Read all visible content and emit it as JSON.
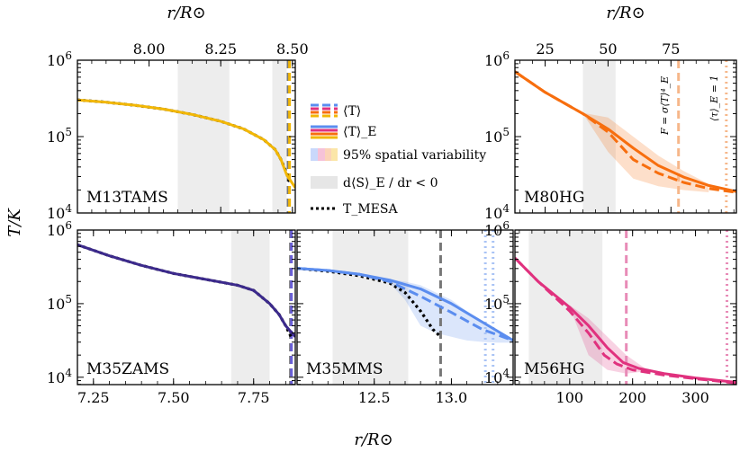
{
  "figure": {
    "ylabel": "T/K",
    "xlabel_bottom": "r/R⊙",
    "xlabel_top_left": "r/R⊙",
    "xlabel_top_right": "r/R⊙"
  },
  "legend": {
    "items": [
      {
        "key": "mean_T",
        "label": "⟨T⟩"
      },
      {
        "key": "mean_T_E",
        "label": "⟨T⟩_E"
      },
      {
        "key": "spread",
        "label": "95% spatial variability"
      },
      {
        "key": "dsdr",
        "label": "d⟨S⟩_E / dr < 0"
      },
      {
        "key": "mesa",
        "label": "T_MESA"
      }
    ]
  },
  "annotations": {
    "flux_label": "F = σ⟨T⟩⁴_E",
    "tau_label": "⟨τ⟩_E = 1"
  },
  "chart_data": [
    {
      "id": "M13TAMS",
      "type": "line",
      "label": "M13TAMS",
      "color": "#f2b705",
      "xlim": [
        7.75,
        8.51
      ],
      "ylim": [
        4.0,
        6.0
      ],
      "yscale": "log",
      "xticks": [
        8.0,
        8.25,
        8.5
      ],
      "xtick_labels": [
        "8.00",
        "8.25",
        "8.50"
      ],
      "xaxis": "top",
      "yticks": [
        4,
        5,
        6
      ],
      "ytick_labels": [
        "10⁴",
        "10⁵",
        "10⁶"
      ],
      "shaded": [
        [
          8.1,
          8.28
        ],
        [
          8.43,
          8.48
        ]
      ],
      "vlines": [
        {
          "x": 8.485,
          "style": "dashed",
          "color": "#777777"
        },
        {
          "x": 8.49,
          "style": "dashed",
          "color": "#f2b705"
        }
      ],
      "series": [
        {
          "name": "T_MESA",
          "style": "dotted",
          "color": "#000000",
          "x": [
            7.75,
            7.85,
            7.95,
            8.05,
            8.15,
            8.25,
            8.33,
            8.4,
            8.44,
            8.46,
            8.48,
            8.49
          ],
          "y": [
            5.48,
            5.45,
            5.41,
            5.36,
            5.29,
            5.2,
            5.1,
            4.96,
            4.83,
            4.7,
            4.52,
            4.4
          ]
        },
        {
          "name": "⟨T⟩_E",
          "style": "solid",
          "color": "#f2b705",
          "x": [
            7.75,
            7.85,
            7.95,
            8.05,
            8.15,
            8.25,
            8.33,
            8.4,
            8.44,
            8.46,
            8.48,
            8.51
          ],
          "y": [
            5.48,
            5.45,
            5.41,
            5.36,
            5.29,
            5.2,
            5.1,
            4.96,
            4.83,
            4.7,
            4.5,
            4.33
          ]
        }
      ]
    },
    {
      "id": "M80HG",
      "type": "line",
      "label": "M80HG",
      "color": "#f76e0e",
      "xlim": [
        13,
        101
      ],
      "ylim": [
        4.0,
        6.0
      ],
      "yscale": "log",
      "xticks": [
        25,
        50,
        75
      ],
      "xtick_labels": [
        "25",
        "50",
        "75"
      ],
      "xaxis": "top",
      "yticks": [
        4,
        5,
        6
      ],
      "ytick_labels": [
        "10⁴",
        "10⁵",
        "10⁶"
      ],
      "shaded": [
        [
          40,
          53
        ]
      ],
      "vlines": [
        {
          "x": 78,
          "style": "dashed",
          "color": "#f6b78a"
        },
        {
          "x": 97,
          "style": "dotted",
          "color": "#f6b78a"
        }
      ],
      "series": [
        {
          "name": "⟨T⟩",
          "style": "dashed",
          "color": "#f76e0e",
          "x": [
            13,
            25,
            40,
            50,
            60,
            70,
            80,
            90,
            101
          ],
          "y": [
            5.85,
            5.58,
            5.3,
            5.06,
            4.7,
            4.52,
            4.4,
            4.32,
            4.27
          ]
        },
        {
          "name": "⟨T⟩_E",
          "style": "solid",
          "color": "#f76e0e",
          "x": [
            13,
            25,
            40,
            50,
            60,
            70,
            80,
            90,
            101
          ],
          "y": [
            5.85,
            5.58,
            5.3,
            5.1,
            4.85,
            4.62,
            4.47,
            4.36,
            4.28
          ]
        }
      ],
      "band": {
        "x": [
          40,
          50,
          60,
          70,
          80,
          90
        ],
        "lo": [
          5.3,
          4.8,
          4.45,
          4.35,
          4.3,
          4.27
        ],
        "hi": [
          5.31,
          5.25,
          5.0,
          4.75,
          4.55,
          4.38
        ]
      }
    },
    {
      "id": "M35ZAMS",
      "type": "line",
      "label": "M35ZAMS",
      "color": "#6a5fd8",
      "xlim": [
        7.2,
        7.88
      ],
      "ylim": [
        3.9,
        6.0
      ],
      "yscale": "log",
      "xticks": [
        7.25,
        7.5,
        7.75
      ],
      "xtick_labels": [
        "7.25",
        "7.50",
        "7.75"
      ],
      "xaxis": "bottom",
      "yticks": [
        4,
        5,
        6
      ],
      "ytick_labels": [
        "10⁴",
        "10⁵",
        "10⁶"
      ],
      "shaded": [
        [
          7.68,
          7.8
        ]
      ],
      "vlines": [
        {
          "x": 7.865,
          "style": "dashed",
          "color": "#777777"
        },
        {
          "x": 7.868,
          "style": "dashed",
          "color": "#6a5fd8"
        }
      ],
      "series": [
        {
          "name": "T_MESA",
          "style": "dotted",
          "color": "#000000",
          "x": [
            7.2,
            7.3,
            7.4,
            7.5,
            7.6,
            7.7,
            7.75,
            7.8,
            7.83,
            7.85,
            7.87
          ],
          "y": [
            5.8,
            5.65,
            5.52,
            5.41,
            5.33,
            5.25,
            5.18,
            5.0,
            4.85,
            4.7,
            4.52
          ]
        },
        {
          "name": "⟨T⟩_E",
          "style": "solid",
          "color": "#3c2a8c",
          "x": [
            7.2,
            7.3,
            7.4,
            7.5,
            7.6,
            7.7,
            7.75,
            7.8,
            7.83,
            7.85,
            7.88
          ],
          "y": [
            5.8,
            5.65,
            5.52,
            5.41,
            5.33,
            5.25,
            5.18,
            5.0,
            4.85,
            4.7,
            4.55
          ]
        }
      ]
    },
    {
      "id": "M35MMS",
      "type": "line",
      "label": "M35MMS",
      "color": "#5b8def",
      "xlim": [
        12.0,
        13.4
      ],
      "ylim": [
        3.9,
        6.0
      ],
      "yscale": "log",
      "xticks": [
        12.5,
        13.0
      ],
      "xtick_labels": [
        "12.5",
        "13.0"
      ],
      "xaxis": "bottom",
      "yticks": [
        4,
        5,
        6
      ],
      "ytick_labels": [
        "10⁴",
        "10⁵",
        "10⁶"
      ],
      "shaded": [
        [
          12.23,
          12.72
        ]
      ],
      "vlines": [
        {
          "x": 12.93,
          "style": "dashed",
          "color": "#777777"
        },
        {
          "x": 13.22,
          "style": "dotted",
          "color": "#a9c3f5"
        },
        {
          "x": 13.27,
          "style": "dotted",
          "color": "#a9c3f5"
        }
      ],
      "series": [
        {
          "name": "T_MESA",
          "style": "dotted",
          "color": "#000000",
          "x": [
            12.0,
            12.2,
            12.4,
            12.6,
            12.7,
            12.8,
            12.88,
            12.93
          ],
          "y": [
            5.48,
            5.44,
            5.38,
            5.28,
            5.15,
            4.9,
            4.65,
            4.55
          ]
        },
        {
          "name": "⟨T⟩",
          "style": "dashed",
          "color": "#5b8def",
          "x": [
            12.0,
            12.2,
            12.4,
            12.6,
            12.8,
            13.0,
            13.2,
            13.4
          ],
          "y": [
            5.48,
            5.45,
            5.4,
            5.3,
            5.1,
            4.88,
            4.65,
            4.5
          ]
        },
        {
          "name": "⟨T⟩_E",
          "style": "solid",
          "color": "#5b8def",
          "x": [
            12.0,
            12.2,
            12.4,
            12.6,
            12.8,
            13.0,
            13.2,
            13.4
          ],
          "y": [
            5.48,
            5.45,
            5.4,
            5.32,
            5.2,
            5.0,
            4.75,
            4.5
          ]
        }
      ],
      "band": {
        "x": [
          12.6,
          12.7,
          12.8,
          12.9,
          13.0,
          13.1,
          13.2,
          13.3,
          13.4
        ],
        "lo": [
          5.28,
          5.05,
          4.7,
          4.6,
          4.55,
          4.5,
          4.48,
          4.47,
          4.47
        ],
        "hi": [
          5.33,
          5.3,
          5.25,
          5.15,
          5.05,
          4.9,
          4.75,
          4.62,
          4.52
        ]
      }
    },
    {
      "id": "M56HG",
      "type": "line",
      "label": "M56HG",
      "color": "#e0317e",
      "xlim": [
        13,
        365
      ],
      "ylim": [
        3.9,
        6.0
      ],
      "yscale": "log",
      "xticks": [
        100,
        200,
        300
      ],
      "xtick_labels": [
        "100",
        "200",
        "300"
      ],
      "xaxis": "bottom",
      "yticks": [
        4,
        5,
        6
      ],
      "ytick_labels": [
        "10⁴",
        "10⁵",
        "10⁶"
      ],
      "shaded": [
        [
          35,
          152
        ]
      ],
      "vlines": [
        {
          "x": 190,
          "style": "dashed",
          "color": "#e88bb7"
        },
        {
          "x": 350,
          "style": "dotted",
          "color": "#e88bb7"
        }
      ],
      "series": [
        {
          "name": "⟨T⟩",
          "style": "dashed",
          "color": "#e0317e",
          "x": [
            13,
            50,
            100,
            130,
            155,
            175,
            200,
            250,
            300,
            365
          ],
          "y": [
            5.62,
            5.3,
            4.9,
            4.6,
            4.3,
            4.18,
            4.1,
            4.03,
            3.98,
            3.92
          ]
        },
        {
          "name": "⟨T⟩_E",
          "style": "solid",
          "color": "#e0317e",
          "x": [
            13,
            50,
            100,
            130,
            160,
            185,
            210,
            250,
            300,
            365
          ],
          "y": [
            5.62,
            5.3,
            4.95,
            4.7,
            4.4,
            4.2,
            4.12,
            4.05,
            3.99,
            3.93
          ]
        }
      ],
      "band": {
        "x": [
          100,
          130,
          160,
          190,
          220
        ],
        "lo": [
          4.95,
          4.3,
          4.1,
          4.05,
          4.08
        ],
        "hi": [
          4.98,
          4.8,
          4.55,
          4.3,
          4.12
        ]
      }
    }
  ]
}
